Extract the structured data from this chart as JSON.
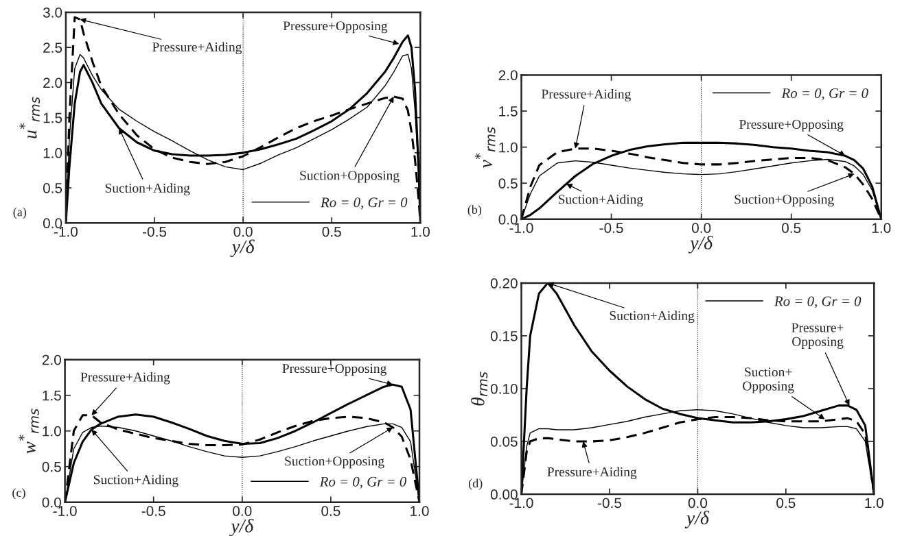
{
  "chart_data": [
    {
      "type": "line",
      "xlabel": "y/δ",
      "ylabel": "u$^{*}$$_{rms}$",
      "xlim": [
        -1.0,
        1.0
      ],
      "ylim": [
        0.0,
        3.0
      ],
      "xticks": [
        {
          "value": -1,
          "label": "-1.0"
        },
        {
          "value": -0.5,
          "label": "-0.5"
        },
        {
          "value": 0,
          "label": "0.0"
        },
        {
          "value": 0.5,
          "label": "0.5"
        },
        {
          "value": 1,
          "label": "1.0"
        }
      ],
      "yticks": [
        {
          "value": 0,
          "label": "0.0"
        },
        {
          "value": 0.5,
          "label": "0.5"
        },
        {
          "value": 1,
          "label": "1.0"
        },
        {
          "value": 1.5,
          "label": "1.5"
        },
        {
          "value": 2,
          "label": "2.0"
        },
        {
          "value": 2.5,
          "label": "2.5"
        },
        {
          "value": 3,
          "label": "3.0"
        }
      ],
      "legend": "bottom right",
      "x": [
        -1,
        -0.98,
        -0.95,
        -0.92,
        -0.9,
        -0.85,
        -0.8,
        -0.7,
        -0.6,
        -0.5,
        -0.4,
        -0.3,
        -0.2,
        -0.1,
        0,
        0.1,
        0.2,
        0.3,
        0.4,
        0.5,
        0.6,
        0.7,
        0.8,
        0.85,
        0.9,
        0.93,
        0.95,
        0.97,
        0.99,
        1
      ],
      "series": [
        {
          "name": "Ro = 0, Gr = 0",
          "color": "#000000",
          "line_style": "solid",
          "values": [
            0,
            1.2,
            2.2,
            2.4,
            2.35,
            2.1,
            1.9,
            1.62,
            1.45,
            1.3,
            1.17,
            1.03,
            0.9,
            0.8,
            0.76,
            0.85,
            0.97,
            1.07,
            1.2,
            1.33,
            1.48,
            1.65,
            1.95,
            2.15,
            2.38,
            2.4,
            2.2,
            1.6,
            0.7,
            0
          ]
        },
        {
          "color": "#000000",
          "line_style": "solid",
          "values": [
            0,
            0.8,
            1.7,
            2.15,
            2.25,
            2.0,
            1.7,
            1.35,
            1.15,
            1.03,
            0.98,
            0.96,
            0.96,
            0.97,
            1.0,
            1.05,
            1.12,
            1.2,
            1.32,
            1.45,
            1.62,
            1.85,
            2.15,
            2.35,
            2.58,
            2.67,
            2.5,
            1.9,
            0.8,
            0
          ]
        },
        {
          "color": "#000000",
          "line_style": "dashed",
          "values": [
            0,
            1.5,
            2.93,
            2.9,
            2.7,
            2.3,
            1.95,
            1.55,
            1.25,
            1.05,
            0.93,
            0.87,
            0.84,
            0.87,
            0.95,
            1.08,
            1.22,
            1.35,
            1.45,
            1.53,
            1.62,
            1.7,
            1.78,
            1.8,
            1.77,
            1.6,
            1.3,
            0.9,
            0.35,
            0
          ]
        }
      ],
      "ref_lines": [
        {
          "axis": "x",
          "value": 0,
          "line_style": "dotted"
        }
      ],
      "annotations": [
        "(a)",
        {
          "text": "Pressure+Aiding",
          "x": -0.92,
          "y": 2.9
        },
        {
          "text": "Pressure+Opposing",
          "x": 0.88,
          "y": 2.55
        },
        {
          "text": "Suction+Aiding",
          "x": -0.7,
          "y": 1.35
        },
        {
          "text": "Suction+Opposing",
          "x": 0.85,
          "y": 1.8
        }
      ]
    },
    {
      "type": "line",
      "xlabel": "y/δ",
      "ylabel": "v$^{*}$$_{rms}$",
      "xlim": [
        -1.0,
        1.0
      ],
      "ylim": [
        0.0,
        2.0
      ],
      "xticks": [
        {
          "value": -1,
          "label": "-1.0"
        },
        {
          "value": -0.5,
          "label": "-0.5"
        },
        {
          "value": 0,
          "label": "0.0"
        },
        {
          "value": 0.5,
          "label": "0.5"
        },
        {
          "value": 1,
          "label": "1.0"
        }
      ],
      "yticks": [
        {
          "value": 0,
          "label": "0.0"
        },
        {
          "value": 0.5,
          "label": "0.5"
        },
        {
          "value": 1,
          "label": "1.0"
        },
        {
          "value": 1.5,
          "label": "1.5"
        },
        {
          "value": 2,
          "label": "2.0"
        }
      ],
      "legend": "top right",
      "x": [
        -1,
        -0.95,
        -0.9,
        -0.8,
        -0.7,
        -0.6,
        -0.5,
        -0.4,
        -0.3,
        -0.2,
        -0.1,
        0,
        0.1,
        0.2,
        0.3,
        0.4,
        0.5,
        0.6,
        0.7,
        0.8,
        0.85,
        0.9,
        0.95,
        1
      ],
      "series": [
        {
          "name": "Ro = 0, Gr = 0",
          "color": "#000000",
          "line_style": "solid",
          "values": [
            0,
            0.35,
            0.6,
            0.78,
            0.81,
            0.79,
            0.75,
            0.71,
            0.68,
            0.65,
            0.63,
            0.62,
            0.63,
            0.66,
            0.7,
            0.74,
            0.78,
            0.81,
            0.83,
            0.8,
            0.74,
            0.62,
            0.4,
            0
          ]
        },
        {
          "color": "#000000",
          "line_style": "solid",
          "values": [
            0,
            0.06,
            0.15,
            0.38,
            0.6,
            0.77,
            0.88,
            0.96,
            1.01,
            1.04,
            1.06,
            1.06,
            1.06,
            1.05,
            1.03,
            1.0,
            0.98,
            0.95,
            0.93,
            0.88,
            0.82,
            0.7,
            0.45,
            0
          ]
        },
        {
          "color": "#000000",
          "line_style": "dashed",
          "values": [
            0,
            0.45,
            0.75,
            0.93,
            0.98,
            0.98,
            0.95,
            0.91,
            0.86,
            0.82,
            0.78,
            0.76,
            0.76,
            0.78,
            0.81,
            0.83,
            0.85,
            0.85,
            0.82,
            0.72,
            0.63,
            0.48,
            0.28,
            0
          ]
        }
      ],
      "ref_lines": [
        {
          "axis": "x",
          "value": 0,
          "line_style": "dotted"
        }
      ],
      "annotations": [
        "(b)",
        {
          "text": "Pressure+Aiding",
          "x": -0.7,
          "y": 0.98
        },
        {
          "text": "Suction+Aiding",
          "x": -0.75,
          "y": 0.49
        },
        {
          "text": "Pressure+Opposing",
          "x": 0.8,
          "y": 0.88
        },
        {
          "text": "Suction+Opposing",
          "x": 0.85,
          "y": 0.63
        }
      ]
    },
    {
      "type": "line",
      "xlabel": "y/δ",
      "ylabel": "w$^{*}$$_{rms}$",
      "xlim": [
        -1.0,
        1.0
      ],
      "ylim": [
        0.0,
        2.0
      ],
      "xticks": [
        {
          "value": -1,
          "label": "-1.0"
        },
        {
          "value": -0.5,
          "label": "-0.5"
        },
        {
          "value": 0,
          "label": "0.0"
        },
        {
          "value": 0.5,
          "label": "0.5"
        },
        {
          "value": 1,
          "label": "1.0"
        }
      ],
      "yticks": [
        {
          "value": 0,
          "label": "0.0"
        },
        {
          "value": 0.5,
          "label": "0.5"
        },
        {
          "value": 1,
          "label": "1.0"
        },
        {
          "value": 1.5,
          "label": "1.5"
        },
        {
          "value": 2,
          "label": "2.0"
        }
      ],
      "legend": "bottom right",
      "x": [
        -1,
        -0.95,
        -0.9,
        -0.85,
        -0.8,
        -0.7,
        -0.6,
        -0.5,
        -0.4,
        -0.3,
        -0.2,
        -0.1,
        0,
        0.1,
        0.2,
        0.3,
        0.4,
        0.5,
        0.6,
        0.7,
        0.8,
        0.85,
        0.9,
        0.95,
        1
      ],
      "series": [
        {
          "name": "Ro = 0, Gr = 0",
          "color": "#000000",
          "line_style": "solid",
          "values": [
            0,
            0.75,
            0.98,
            1.05,
            1.07,
            1.05,
            1.0,
            0.93,
            0.86,
            0.78,
            0.71,
            0.65,
            0.63,
            0.65,
            0.71,
            0.78,
            0.86,
            0.93,
            1.0,
            1.06,
            1.1,
            1.1,
            1.05,
            0.85,
            0
          ]
        },
        {
          "color": "#000000",
          "line_style": "solid",
          "values": [
            0,
            0.55,
            0.85,
            1.02,
            1.1,
            1.2,
            1.23,
            1.2,
            1.12,
            1.03,
            0.93,
            0.86,
            0.82,
            0.83,
            0.9,
            1.0,
            1.12,
            1.25,
            1.38,
            1.5,
            1.62,
            1.65,
            1.62,
            1.3,
            0
          ]
        },
        {
          "color": "#000000",
          "line_style": "dashed",
          "values": [
            0,
            1.0,
            1.22,
            1.22,
            1.12,
            1.02,
            0.96,
            0.9,
            0.86,
            0.82,
            0.8,
            0.8,
            0.81,
            0.88,
            0.98,
            1.07,
            1.14,
            1.18,
            1.2,
            1.18,
            1.12,
            1.05,
            0.92,
            0.6,
            0
          ]
        }
      ],
      "ref_lines": [
        {
          "axis": "x",
          "value": 0,
          "line_style": "dotted"
        }
      ],
      "annotations": [
        "(c)",
        {
          "text": "Pressure+Aiding",
          "x": -0.85,
          "y": 1.22
        },
        {
          "text": "Suction+Aiding",
          "x": -0.85,
          "y": 1.02
        },
        {
          "text": "Pressure+Opposing",
          "x": 0.85,
          "y": 1.65
        },
        {
          "text": "Suction+Opposing",
          "x": 0.85,
          "y": 1.05
        }
      ]
    },
    {
      "type": "line",
      "xlabel": "y/δ",
      "ylabel": "θ$_{rms}$",
      "xlim": [
        -1.0,
        1.0
      ],
      "ylim": [
        0.0,
        0.2
      ],
      "xticks": [
        {
          "value": -1,
          "label": "-1.0"
        },
        {
          "value": -0.5,
          "label": "-0.5"
        },
        {
          "value": 0,
          "label": "0.0"
        },
        {
          "value": 0.5,
          "label": "0.5"
        },
        {
          "value": 1,
          "label": "1.0"
        }
      ],
      "yticks": [
        {
          "value": 0,
          "label": "0.00"
        },
        {
          "value": 0.05,
          "label": "0.05"
        },
        {
          "value": 0.1,
          "label": "0.10"
        },
        {
          "value": 0.15,
          "label": "0.15"
        },
        {
          "value": 0.2,
          "label": "0.20"
        }
      ],
      "legend": "top right",
      "x": [
        -1,
        -0.97,
        -0.95,
        -0.9,
        -0.85,
        -0.8,
        -0.7,
        -0.6,
        -0.5,
        -0.4,
        -0.3,
        -0.2,
        -0.1,
        0,
        0.1,
        0.2,
        0.3,
        0.4,
        0.5,
        0.6,
        0.7,
        0.8,
        0.85,
        0.9,
        0.95,
        1
      ],
      "series": [
        {
          "name": "Ro = 0, Gr = 0",
          "color": "#000000",
          "line_style": "solid",
          "values": [
            0,
            0.045,
            0.058,
            0.062,
            0.062,
            0.061,
            0.061,
            0.063,
            0.066,
            0.069,
            0.073,
            0.076,
            0.079,
            0.08,
            0.079,
            0.076,
            0.072,
            0.068,
            0.065,
            0.063,
            0.063,
            0.064,
            0.064,
            0.062,
            0.05,
            0
          ]
        },
        {
          "color": "#000000",
          "line_style": "solid",
          "values": [
            0,
            0.1,
            0.15,
            0.19,
            0.2,
            0.19,
            0.16,
            0.135,
            0.117,
            0.102,
            0.09,
            0.081,
            0.076,
            0.072,
            0.07,
            0.068,
            0.068,
            0.069,
            0.071,
            0.074,
            0.079,
            0.084,
            0.084,
            0.08,
            0.065,
            0
          ]
        },
        {
          "color": "#000000",
          "line_style": "dashed",
          "values": [
            0,
            0.04,
            0.05,
            0.053,
            0.053,
            0.052,
            0.05,
            0.05,
            0.051,
            0.054,
            0.058,
            0.063,
            0.068,
            0.071,
            0.073,
            0.073,
            0.072,
            0.07,
            0.069,
            0.069,
            0.069,
            0.071,
            0.072,
            0.069,
            0.057,
            0
          ]
        }
      ],
      "ref_lines": [
        {
          "axis": "x",
          "value": 0,
          "line_style": "dotted"
        }
      ],
      "annotations": [
        "(d)",
        {
          "text": "Suction+Aiding",
          "x": -0.85,
          "y": 0.2
        },
        {
          "text": "Pressure+Aiding",
          "x": -0.65,
          "y": 0.05
        },
        {
          "text": "Suction+\nOpposing",
          "x": 0.72,
          "y": 0.071
        },
        {
          "text": "Pressure+\nOpposing",
          "x": 0.86,
          "y": 0.084
        }
      ]
    }
  ]
}
